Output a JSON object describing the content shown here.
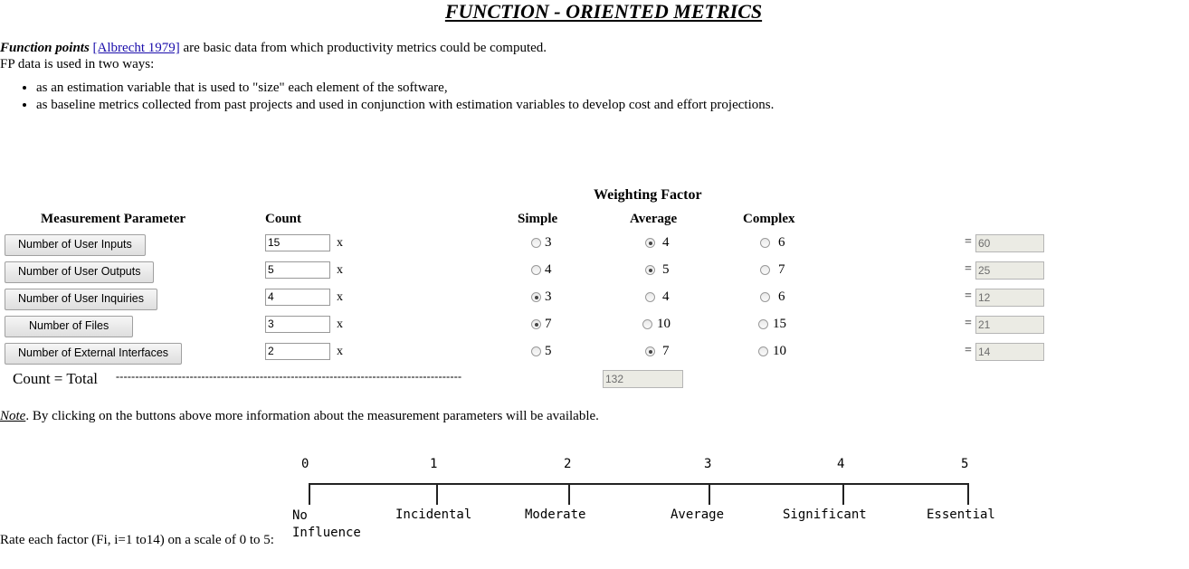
{
  "title": "FUNCTION - ORIENTED METRICS",
  "intro": {
    "term": "Function points",
    "citation": "[Albrecht 1979]",
    "sentence": " are basic data from which productivity metrics could be computed.",
    "line2": "FP data is used in two ways:",
    "uses": [
      "as an estimation variable that is used to \"size\" each element of the software,",
      "as baseline metrics collected from past projects and used in conjunction with estimation variables to develop cost and effort projections."
    ]
  },
  "table": {
    "weighting_header": "Weighting Factor",
    "col_param": "Measurement Parameter",
    "col_count": "Count",
    "col_simple": "Simple",
    "col_average": "Average",
    "col_complex": "Complex",
    "multiply_sign": "x",
    "equals_sign": "=",
    "rows": [
      {
        "label": "Number of User Inputs",
        "count": "15",
        "simple": "3",
        "average": "4",
        "complex": "6",
        "selected": "average",
        "result": "60"
      },
      {
        "label": "Number of User Outputs",
        "count": "5",
        "simple": "4",
        "average": "5",
        "complex": "7",
        "selected": "average",
        "result": "25"
      },
      {
        "label": "Number of User Inquiries",
        "count": "4",
        "simple": "3",
        "average": "4",
        "complex": "6",
        "selected": "simple",
        "result": "12"
      },
      {
        "label": "Number of Files",
        "count": "3",
        "simple": "7",
        "average": "10",
        "complex": "15",
        "selected": "simple",
        "result": "21"
      },
      {
        "label": "Number of External Interfaces",
        "count": "2",
        "simple": "5",
        "average": "7",
        "complex": "10",
        "selected": "average",
        "result": "14"
      }
    ],
    "total_label": "Count = Total",
    "total_dashes": "-----------------------------------------------------------------------------------------",
    "total_value": "132"
  },
  "note": {
    "label": "Note",
    "text": ". By clicking on the buttons above more information about the measurement parameters will be available."
  },
  "scale": {
    "numbers": [
      "0",
      "1",
      "2",
      "3",
      "4",
      "5"
    ],
    "labels": [
      "No Influence",
      "Incidental",
      "Moderate",
      "Average",
      "Significant",
      "Essential"
    ],
    "rate_text": "Rate each factor (Fi, i=1 to14) on a scale of 0 to 5:"
  }
}
